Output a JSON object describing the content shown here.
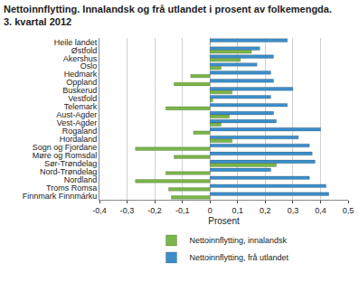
{
  "chart_data": {
    "type": "bar",
    "title": "Nettoinnflytting. Innalandsk og frå utlandet i prosent av folkemengda.\n3. kvartal 2012",
    "orientation": "horizontal",
    "x_label": "Prosent",
    "categories": [
      "Heile landet",
      "Østfold",
      "Akershus",
      "Oslo",
      "Hedmark",
      "Oppland",
      "Buskerud",
      "Vestfold",
      "Telemark",
      "Aust-Agder",
      "Vest-Agder",
      "Rogaland",
      "Hordaland",
      "Sogn og Fjordane",
      "Møre og Romsdal",
      "Sør-Trøndelag",
      "Nord-Trøndelag",
      "Nordland",
      "Troms Romsa",
      "Finnmark Finnmárku"
    ],
    "series": [
      {
        "name": "Nettoinnflytting, innalandsk",
        "color": "#7ab648",
        "values": [
          0,
          0.15,
          0.11,
          0.04,
          -0.07,
          -0.13,
          0.08,
          0.01,
          -0.16,
          0.07,
          0.04,
          -0.06,
          0.08,
          -0.27,
          -0.13,
          0.24,
          -0.16,
          -0.27,
          -0.15,
          -0.14
        ]
      },
      {
        "name": "Nettoinnflytting, frå utlandet",
        "color": "#3d8ec9",
        "values": [
          0.28,
          0.18,
          0.23,
          0.17,
          0.22,
          0.23,
          0.3,
          0.22,
          0.28,
          0.23,
          0.24,
          0.4,
          0.32,
          0.36,
          0.37,
          0.38,
          0.22,
          0.36,
          0.42,
          0.43
        ]
      }
    ],
    "xlim": [
      -0.4,
      0.5
    ],
    "xticks": [
      {
        "value": -0.4,
        "label": "-0,4"
      },
      {
        "value": -0.3,
        "label": "-0,3"
      },
      {
        "value": -0.2,
        "label": "-0,2"
      },
      {
        "value": -0.1,
        "label": "-0,1"
      },
      0,
      {
        "value": 0.1,
        "label": "0,1"
      },
      {
        "value": 0.2,
        "label": "0,2"
      },
      {
        "value": 0.3,
        "label": "0,3"
      },
      {
        "value": 0.4,
        "label": "0,4"
      },
      {
        "value": 0.5,
        "label": "0,5"
      }
    ],
    "grid": true,
    "legend": "bottom"
  }
}
